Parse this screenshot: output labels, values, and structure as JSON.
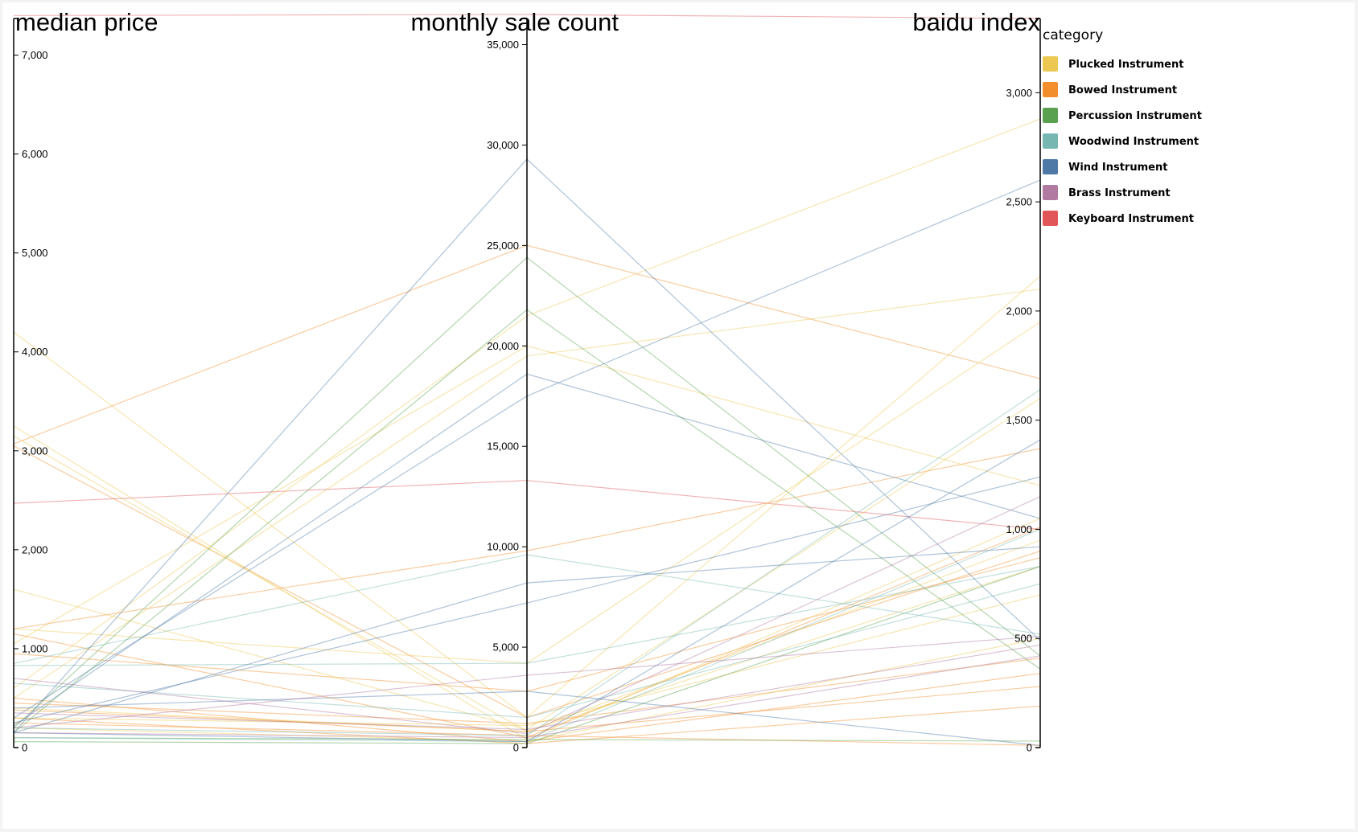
{
  "chart_data": {
    "type": "parallel-coordinates",
    "axes": [
      {
        "key": "median_price",
        "label": "median price",
        "ticks": [
          0,
          1000,
          2000,
          3000,
          4000,
          5000,
          6000,
          7000
        ],
        "tick_labels": [
          "0",
          "1,000",
          "2,000",
          "3,000",
          "4,000",
          "5,000",
          "6,000",
          "7,000"
        ],
        "range": [
          0,
          7370
        ],
        "tick_side": "right"
      },
      {
        "key": "monthly_sale_count",
        "label": "monthly sale count",
        "ticks": [
          0,
          5000,
          10000,
          15000,
          20000,
          25000,
          30000,
          35000
        ],
        "tick_labels": [
          "0",
          "5,000",
          "10,000",
          "15,000",
          "20,000",
          "25,000",
          "30,000",
          "35,000"
        ],
        "range": [
          0,
          36300
        ],
        "tick_side": "left"
      },
      {
        "key": "baidu_index",
        "label": "baidu index",
        "ticks": [
          0,
          500,
          1000,
          1500,
          2000,
          2500,
          3000
        ],
        "tick_labels": [
          "0",
          "500",
          "1,000",
          "1,500",
          "2,000",
          "2,500",
          "3,000"
        ],
        "range": [
          0,
          3340
        ],
        "tick_side": "left"
      }
    ],
    "legend": {
      "title": "category",
      "placement": "top-right",
      "items": [
        {
          "label": "Plucked Instrument",
          "color": "#ecc853"
        },
        {
          "label": "Bowed Instrument",
          "color": "#f28e2c"
        },
        {
          "label": "Percussion Instrument",
          "color": "#59a14f"
        },
        {
          "label": "Woodwind Instrument",
          "color": "#76b7b2"
        },
        {
          "label": "Wind Instrument",
          "color": "#4e79a7"
        },
        {
          "label": "Brass Instrument",
          "color": "#b07aa1"
        },
        {
          "label": "Keyboard Instrument",
          "color": "#e15759"
        }
      ]
    },
    "series": [
      {
        "category": "Keyboard Instrument",
        "values": [
          7400,
          36500,
          3340
        ]
      },
      {
        "category": "Keyboard Instrument",
        "values": [
          2470,
          13300,
          1000
        ]
      },
      {
        "category": "Bowed Instrument",
        "values": [
          3070,
          25000,
          1690
        ]
      },
      {
        "category": "Bowed Instrument",
        "values": [
          3050,
          1500,
          900
        ]
      },
      {
        "category": "Bowed Instrument",
        "values": [
          1200,
          9800,
          1370
        ]
      },
      {
        "category": "Bowed Instrument",
        "values": [
          1150,
          500,
          1010
        ]
      },
      {
        "category": "Bowed Instrument",
        "values": [
          950,
          2800,
          870
        ]
      },
      {
        "category": "Bowed Instrument",
        "values": [
          500,
          300,
          340
        ]
      },
      {
        "category": "Bowed Instrument",
        "values": [
          450,
          1200,
          410
        ]
      },
      {
        "category": "Bowed Instrument",
        "values": [
          380,
          800,
          280
        ]
      },
      {
        "category": "Bowed Instrument",
        "values": [
          300,
          200,
          190
        ]
      },
      {
        "category": "Bowed Instrument",
        "values": [
          250,
          600,
          10
        ]
      },
      {
        "category": "Plucked Instrument",
        "values": [
          4200,
          1500,
          2160
        ]
      },
      {
        "category": "Plucked Instrument",
        "values": [
          3250,
          400,
          1050
        ]
      },
      {
        "category": "Plucked Instrument",
        "values": [
          3150,
          800,
          950
        ]
      },
      {
        "category": "Plucked Instrument",
        "values": [
          1600,
          900,
          1600
        ]
      },
      {
        "category": "Plucked Instrument",
        "values": [
          1050,
          20000,
          1200
        ]
      },
      {
        "category": "Plucked Instrument",
        "values": [
          1200,
          4200,
          1950
        ]
      },
      {
        "category": "Plucked Instrument",
        "values": [
          600,
          21500,
          2880
        ]
      },
      {
        "category": "Plucked Instrument",
        "values": [
          500,
          19500,
          2100
        ]
      },
      {
        "category": "Plucked Instrument",
        "values": [
          400,
          800,
          830
        ]
      },
      {
        "category": "Plucked Instrument",
        "values": [
          300,
          1100,
          700
        ]
      },
      {
        "category": "Plucked Instrument",
        "values": [
          200,
          300,
          500
        ]
      },
      {
        "category": "Percussion Instrument",
        "values": [
          200,
          24400,
          420
        ]
      },
      {
        "category": "Percussion Instrument",
        "values": [
          150,
          21800,
          360
        ]
      },
      {
        "category": "Percussion Instrument",
        "values": [
          100,
          400,
          30
        ]
      },
      {
        "category": "Percussion Instrument",
        "values": [
          60,
          200,
          830
        ]
      },
      {
        "category": "Woodwind Instrument",
        "values": [
          830,
          4200,
          830
        ]
      },
      {
        "category": "Woodwind Instrument",
        "values": [
          850,
          9600,
          520
        ]
      },
      {
        "category": "Woodwind Instrument",
        "values": [
          650,
          1500,
          750
        ]
      },
      {
        "category": "Woodwind Instrument",
        "values": [
          200,
          600,
          1640
        ]
      },
      {
        "category": "Woodwind Instrument",
        "values": [
          100,
          300,
          1000
        ]
      },
      {
        "category": "Wind Instrument",
        "values": [
          150,
          29300,
          490
        ]
      },
      {
        "category": "Wind Instrument",
        "values": [
          220,
          18600,
          1050
        ]
      },
      {
        "category": "Wind Instrument",
        "values": [
          300,
          17500,
          2600
        ]
      },
      {
        "category": "Wind Instrument",
        "values": [
          150,
          8200,
          920
        ]
      },
      {
        "category": "Wind Instrument",
        "values": [
          250,
          7200,
          1240
        ]
      },
      {
        "category": "Wind Instrument",
        "values": [
          400,
          2800,
          10
        ]
      },
      {
        "category": "Wind Instrument",
        "values": [
          150,
          300,
          1410
        ]
      },
      {
        "category": "Brass Instrument",
        "values": [
          700,
          700,
          1150
        ]
      },
      {
        "category": "Brass Instrument",
        "values": [
          200,
          3600,
          510
        ]
      },
      {
        "category": "Brass Instrument",
        "values": [
          150,
          500,
          420
        ]
      },
      {
        "category": "Brass Instrument",
        "values": [
          350,
          900,
          470
        ]
      }
    ]
  }
}
